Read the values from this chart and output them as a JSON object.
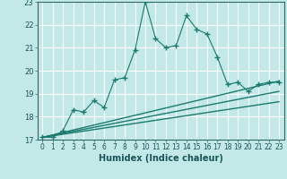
{
  "title": "",
  "xlabel": "Humidex (Indice chaleur)",
  "bg_color": "#c2e8e8",
  "grid_color": "#ffffff",
  "line_color": "#1a7a6e",
  "xlim": [
    -0.5,
    23.5
  ],
  "ylim": [
    17,
    23
  ],
  "xticks": [
    0,
    1,
    2,
    3,
    4,
    5,
    6,
    7,
    8,
    9,
    10,
    11,
    12,
    13,
    14,
    15,
    16,
    17,
    18,
    19,
    20,
    21,
    22,
    23
  ],
  "yticks": [
    17,
    18,
    19,
    20,
    21,
    22,
    23
  ],
  "main_x": [
    0,
    1,
    2,
    3,
    4,
    5,
    6,
    7,
    8,
    9,
    10,
    11,
    12,
    13,
    14,
    15,
    16,
    17,
    18,
    19,
    20,
    21,
    22,
    23
  ],
  "main_y": [
    17.1,
    17.1,
    17.4,
    18.3,
    18.2,
    18.7,
    18.4,
    19.6,
    19.7,
    20.9,
    23.0,
    21.4,
    21.0,
    21.1,
    22.4,
    21.8,
    21.6,
    20.6,
    19.4,
    19.5,
    19.1,
    19.4,
    19.5,
    19.5
  ],
  "line1_x": [
    0,
    23
  ],
  "line1_y": [
    17.1,
    19.55
  ],
  "line2_x": [
    0,
    23
  ],
  "line2_y": [
    17.1,
    19.1
  ],
  "line3_x": [
    0,
    23
  ],
  "line3_y": [
    17.1,
    18.65
  ]
}
